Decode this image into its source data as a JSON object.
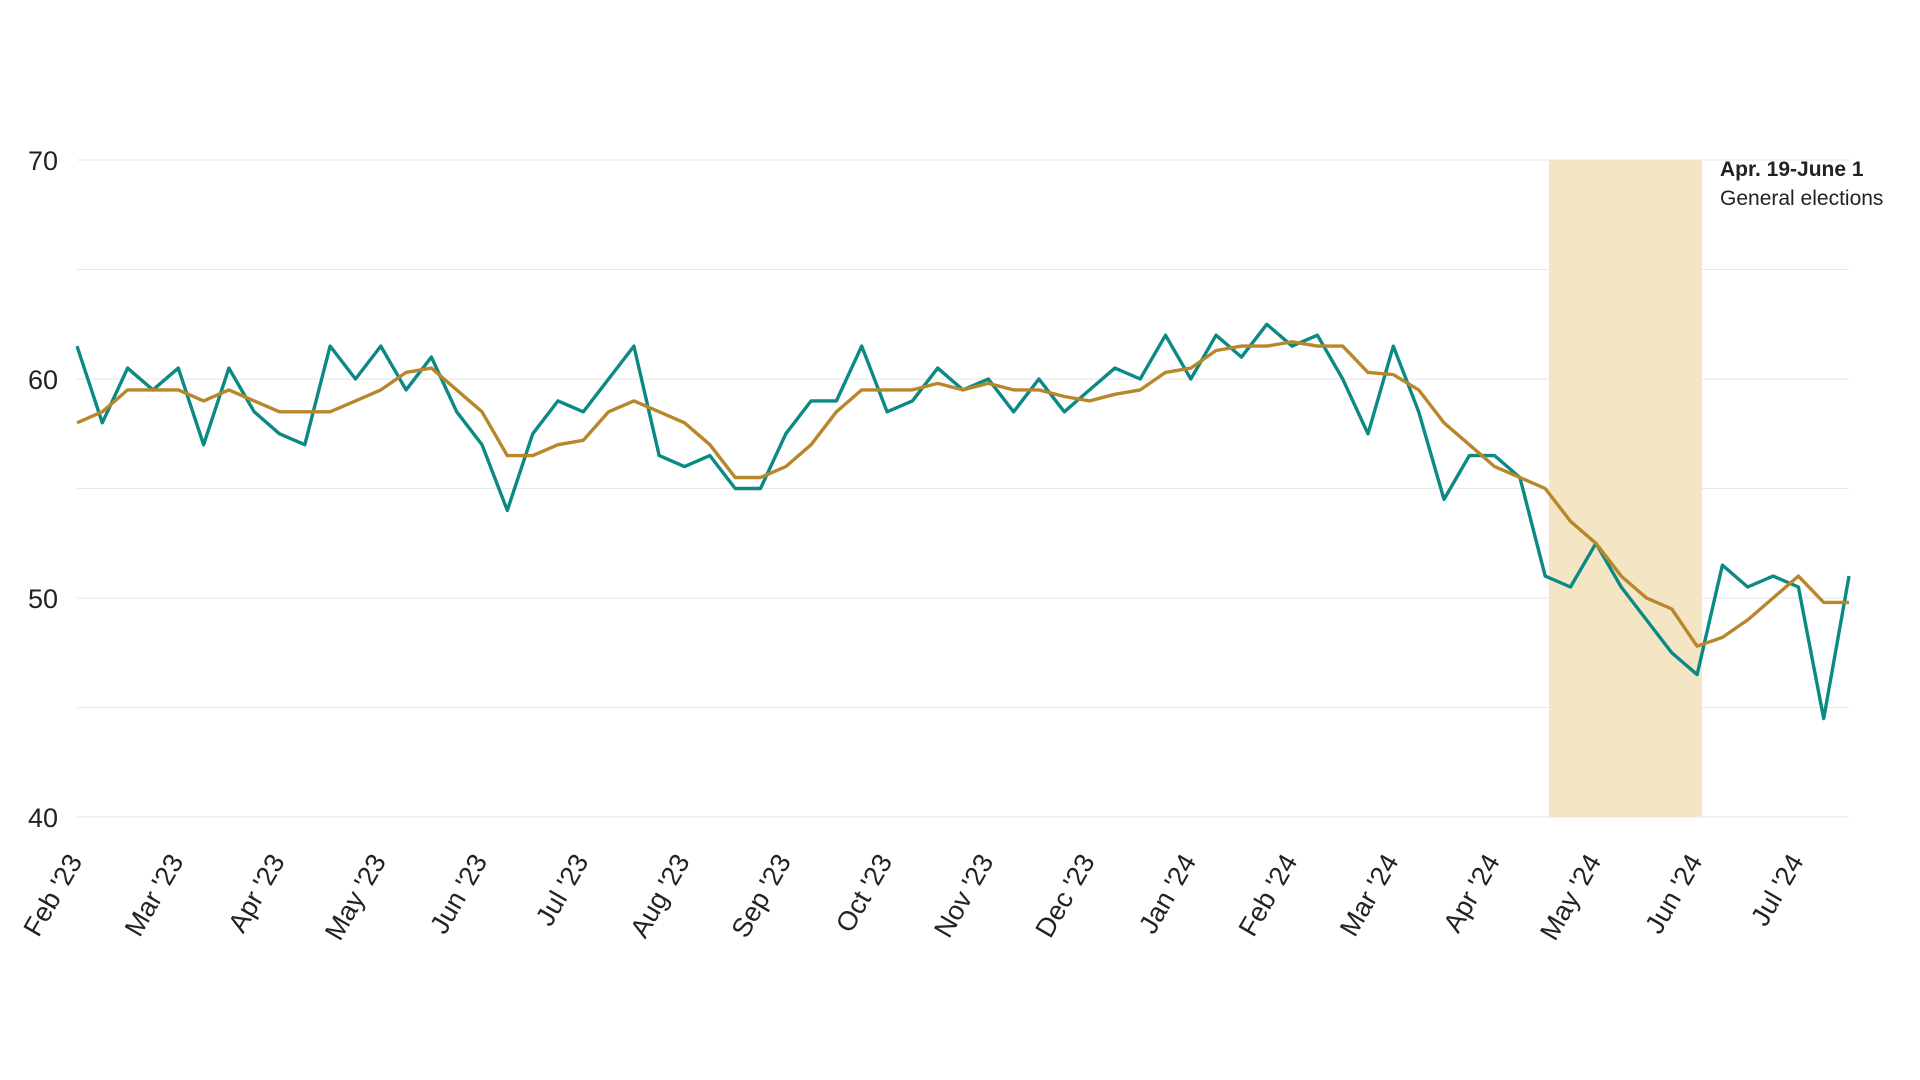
{
  "chart_data": {
    "type": "line",
    "categories": [
      "Feb '23",
      null,
      null,
      null,
      "Mar '23",
      null,
      null,
      null,
      "Apr '23",
      null,
      null,
      null,
      "May '23",
      null,
      null,
      null,
      "Jun '23",
      null,
      null,
      null,
      "Jul '23",
      null,
      null,
      null,
      "Aug '23",
      null,
      null,
      null,
      "Sep '23",
      null,
      null,
      null,
      "Oct '23",
      null,
      null,
      null,
      "Nov '23",
      null,
      null,
      null,
      "Dec '23",
      null,
      null,
      null,
      "Jan '24",
      null,
      null,
      null,
      "Feb '24",
      null,
      null,
      null,
      "Mar '24",
      null,
      null,
      null,
      "Apr '24",
      null,
      null,
      null,
      "May '24",
      null,
      null,
      null,
      "Jun '24",
      null,
      null,
      null,
      "Jul '24",
      null,
      null
    ],
    "series": [
      {
        "color": "#0b8a84",
        "values": [
          61.5,
          58,
          60.5,
          59.5,
          60.5,
          57,
          60.5,
          58.5,
          57.5,
          57,
          61.5,
          60,
          61.5,
          59.5,
          61,
          58.5,
          57,
          54,
          57.5,
          59,
          58.5,
          60,
          61.5,
          56.5,
          56,
          56.5,
          55,
          55,
          57.5,
          59,
          59,
          61.5,
          58.5,
          59,
          60.5,
          59.5,
          60,
          58.5,
          60,
          58.5,
          59.5,
          60.5,
          60,
          62,
          60,
          62,
          61,
          62.5,
          61.5,
          62,
          60,
          57.5,
          61.5,
          58.5,
          54.5,
          56.5,
          56.5,
          55.5,
          51,
          50.5,
          52.5,
          50.5,
          49,
          47.5,
          46.5,
          51.5,
          50.5,
          51,
          50.5,
          44.5,
          51
        ]
      },
      {
        "color": "#b8862b",
        "values": [
          58,
          58.5,
          59.5,
          59.5,
          59.5,
          59,
          59.5,
          59,
          58.5,
          58.5,
          58.5,
          59,
          59.5,
          60.3,
          60.5,
          59.5,
          58.5,
          56.5,
          56.5,
          57,
          57.2,
          58.5,
          59,
          58.5,
          58,
          57,
          55.5,
          55.5,
          56,
          57,
          58.5,
          59.5,
          59.5,
          59.5,
          59.8,
          59.5,
          59.8,
          59.5,
          59.5,
          59.2,
          59,
          59.3,
          59.5,
          60.3,
          60.5,
          61.3,
          61.5,
          61.5,
          61.7,
          61.5,
          61.5,
          60.3,
          60.2,
          59.5,
          58,
          57,
          56,
          55.5,
          55,
          53.5,
          52.5,
          51,
          50,
          49.5,
          47.8,
          48.2,
          49,
          50,
          51,
          49.8,
          49.8
        ]
      }
    ],
    "ylim": [
      40,
      70
    ],
    "yticks": [
      40,
      50,
      60,
      70
    ],
    "minor_yticks": [
      45,
      55,
      65
    ],
    "grid": true,
    "shaded_region": {
      "color": "#f4e6c4",
      "title": "Apr. 19-June 1",
      "text": "General elections"
    }
  }
}
